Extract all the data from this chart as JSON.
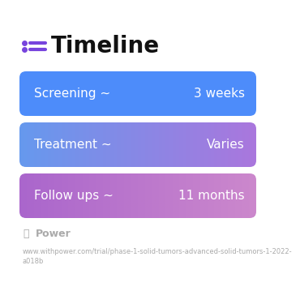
{
  "title": "Timeline",
  "title_fontsize": 20,
  "title_color": "#111111",
  "title_icon_color": "#7744dd",
  "background_color": "#ffffff",
  "rows": [
    {
      "left_text": "Screening ~",
      "right_text": "3 weeks",
      "color_left": "#4d8cfa",
      "color_right": "#4d8cfa",
      "gradient": false
    },
    {
      "left_text": "Treatment ~",
      "right_text": "Varies",
      "color_left": "#6699ee",
      "color_right": "#aa77dd",
      "gradient": true
    },
    {
      "left_text": "Follow ups ~",
      "right_text": "11 months",
      "color_left": "#aa66cc",
      "color_right": "#cc88cc",
      "gradient": true
    }
  ],
  "footer_logo_color": "#aaaaaa",
  "footer_text": "Power",
  "footer_url": "www.withpower.com/trial/phase-1-solid-tumors-advanced-solid-tumors-1-2022-\na018b",
  "row_text_color": "#ffffff",
  "row_text_fontsize": 11
}
